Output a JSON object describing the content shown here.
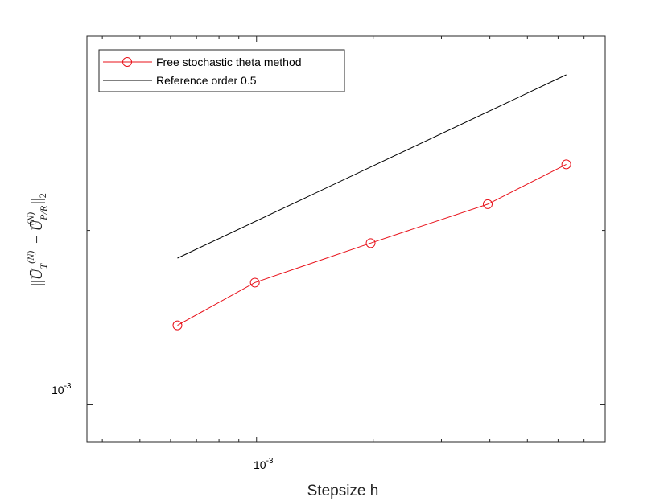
{
  "chart_data": {
    "type": "line",
    "xscale": "log",
    "yscale": "log",
    "xlabel": "Stepsize h",
    "ylabel": "||Ū_T^(N) − Ū_P/R^(N)||_2",
    "xlim": [
      0.000365,
      0.00794
    ],
    "ylim": [
      0.00079,
      0.0102
    ],
    "grid": false,
    "legend_position": "top-left",
    "x_tick_major": {
      "value": 0.001,
      "label_base": "10",
      "label_exp": "-3"
    },
    "y_tick_major": {
      "value": 0.001,
      "label_base": "10",
      "label_exp": "-3"
    },
    "x_minor_ticks": [
      0.0004,
      0.0005,
      0.0006,
      0.0007,
      0.0008,
      0.0009,
      0.002,
      0.003,
      0.004,
      0.005,
      0.006,
      0.007
    ],
    "y_minor_ticks": [
      0.003
    ],
    "series": [
      {
        "name": "Free stochastic theta method",
        "color": "#e8111a",
        "marker": "circle",
        "x": [
          0.000625,
          0.00099,
          0.00197,
          0.00395,
          0.0063
        ],
        "y": [
          0.00165,
          0.00216,
          0.00277,
          0.00354,
          0.00455
        ]
      },
      {
        "name": "Reference order 0.5",
        "color": "#000000",
        "marker": "none",
        "x": [
          0.000625,
          0.0063
        ],
        "y": [
          0.00252,
          0.008
        ]
      }
    ]
  }
}
